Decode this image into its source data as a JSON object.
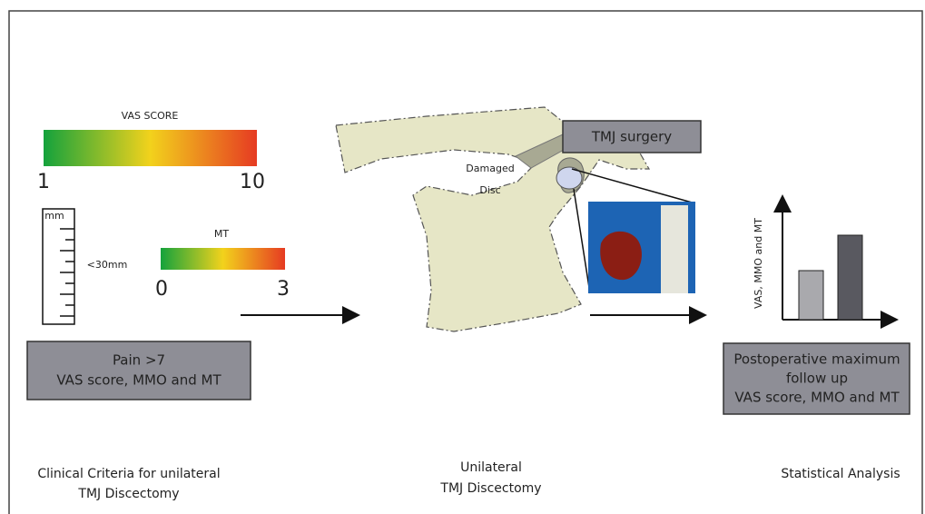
{
  "left": {
    "vas_scale": {
      "title": "VAS SCORE",
      "min_label": "1",
      "max_label": "10"
    },
    "ruler": {
      "unit": "mm",
      "threshold": "<30mm"
    },
    "mt_scale": {
      "title": "MT",
      "min_label": "0",
      "max_label": "3"
    },
    "criteria_box": {
      "lines": [
        "Pain >7",
        "VAS score, MMO and MT"
      ]
    },
    "caption": [
      "Clinical Criteria for unilateral",
      "TMJ Discectomy"
    ]
  },
  "middle": {
    "surgery_box": "TMJ surgery",
    "disc_label": [
      "Damaged",
      "Disc"
    ],
    "caption": [
      "Unilateral",
      "TMJ Discectomy"
    ]
  },
  "right": {
    "axis_label": "VAS, MMO and MT",
    "outcome_box": [
      "Postoperative maximum",
      "follow up",
      "VAS score, MMO and MT"
    ],
    "caption": "Statistical Analysis"
  }
}
